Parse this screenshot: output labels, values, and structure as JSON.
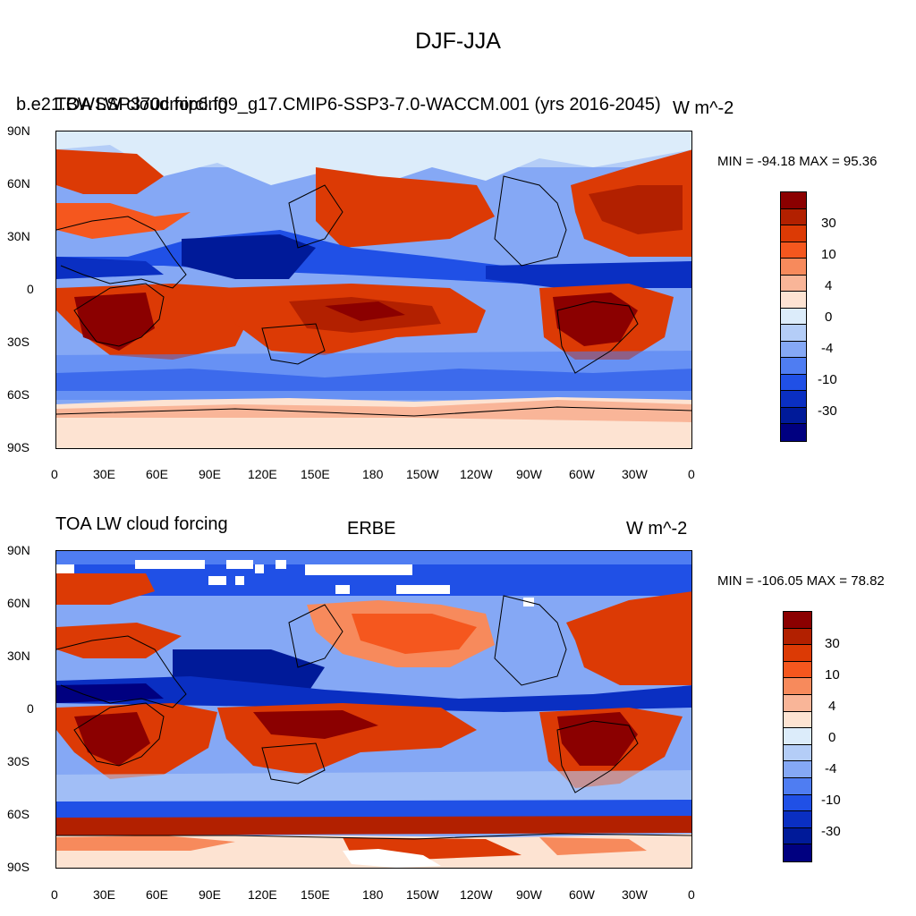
{
  "title": "DJF-JJA",
  "panels": [
    {
      "left_title": "TOA LW cloud forcing",
      "center_title": "b.e21.BWSSP370cmip6.f09_g17.CMIP6-SSP3-7.0-WACCM.001 (yrs 2016-2045)",
      "units": "W m^-2",
      "stats": "MIN = -94.18 MAX =  95.36"
    },
    {
      "left_title": "TOA LW cloud forcing",
      "center_title": "ERBE",
      "units": "W m^-2",
      "stats": "MIN = -106.05 MAX =  78.82"
    }
  ],
  "colorbar": {
    "labels": [
      "30",
      "10",
      "4",
      "0",
      "-4",
      "-10",
      "-30"
    ],
    "colors": [
      "#8b0000",
      "#b22000",
      "#dc3a05",
      "#f5571e",
      "#f78a5c",
      "#f9b598",
      "#fde3d2",
      "#dcecfa",
      "#b4cdf7",
      "#85a8f5",
      "#4f7df2",
      "#2050e6",
      "#0a2fc2",
      "#001a99",
      "#000080"
    ]
  },
  "axes": {
    "lat_ticks": [
      "90N",
      "60N",
      "30N",
      "0",
      "30S",
      "60S",
      "90S"
    ],
    "lon_ticks": [
      "0",
      "30E",
      "60E",
      "90E",
      "120E",
      "150E",
      "180",
      "150W",
      "120W",
      "90W",
      "60W",
      "30W",
      "0"
    ]
  }
}
